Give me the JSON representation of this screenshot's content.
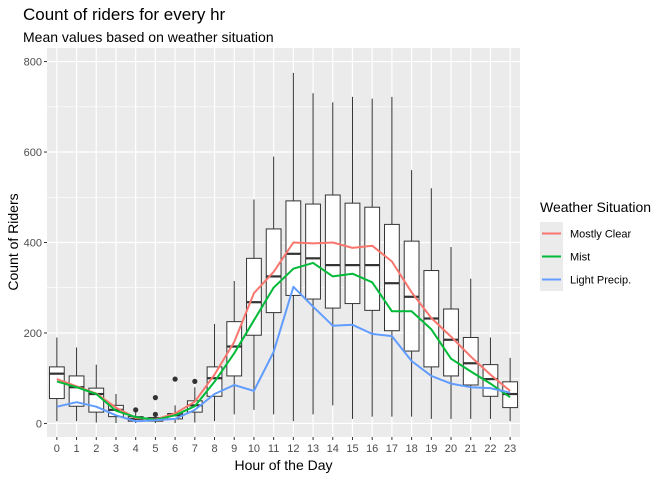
{
  "chart_data": {
    "type": "box",
    "title": "Count of riders for every hr",
    "subtitle": "Mean values based on weather situation",
    "xlabel": "Hour of the Day",
    "ylabel": "Count of Riders",
    "ylim": [
      -30,
      830
    ],
    "y_ticks": [
      0,
      200,
      400,
      600,
      800
    ],
    "categories": [
      "0",
      "1",
      "2",
      "3",
      "4",
      "5",
      "6",
      "7",
      "8",
      "9",
      "10",
      "11",
      "12",
      "13",
      "14",
      "15",
      "16",
      "17",
      "18",
      "19",
      "20",
      "21",
      "22",
      "23"
    ],
    "boxes": [
      {
        "q1": 55,
        "median": 110,
        "q3": 125,
        "lo": 5,
        "hi": 190,
        "outliers": []
      },
      {
        "q1": 38,
        "median": 80,
        "q3": 105,
        "lo": 5,
        "hi": 168,
        "outliers": []
      },
      {
        "q1": 25,
        "median": 65,
        "q3": 78,
        "lo": 2,
        "hi": 130,
        "outliers": []
      },
      {
        "q1": 15,
        "median": 30,
        "q3": 40,
        "lo": 1,
        "hi": 65,
        "outliers": []
      },
      {
        "q1": 5,
        "median": 10,
        "q3": 15,
        "lo": 1,
        "hi": 25,
        "outliers": [
          30
        ]
      },
      {
        "q1": 5,
        "median": 10,
        "q3": 13,
        "lo": 1,
        "hi": 18,
        "outliers": [
          20,
          57
        ]
      },
      {
        "q1": 10,
        "median": 18,
        "q3": 22,
        "lo": 1,
        "hi": 40,
        "outliers": [
          98
        ]
      },
      {
        "q1": 25,
        "median": 40,
        "q3": 50,
        "lo": 2,
        "hi": 80,
        "outliers": [
          93
        ]
      },
      {
        "q1": 60,
        "median": 100,
        "q3": 125,
        "lo": 5,
        "hi": 220,
        "outliers": []
      },
      {
        "q1": 105,
        "median": 170,
        "q3": 225,
        "lo": 20,
        "hi": 315,
        "outliers": []
      },
      {
        "q1": 195,
        "median": 268,
        "q3": 365,
        "lo": 30,
        "hi": 495,
        "outliers": []
      },
      {
        "q1": 245,
        "median": 325,
        "q3": 430,
        "lo": 20,
        "hi": 590,
        "outliers": []
      },
      {
        "q1": 283,
        "median": 375,
        "q3": 492,
        "lo": 5,
        "hi": 775,
        "outliers": []
      },
      {
        "q1": 275,
        "median": 365,
        "q3": 485,
        "lo": 20,
        "hi": 730,
        "outliers": []
      },
      {
        "q1": 255,
        "median": 350,
        "q3": 505,
        "lo": 40,
        "hi": 710,
        "outliers": []
      },
      {
        "q1": 265,
        "median": 350,
        "q3": 487,
        "lo": 10,
        "hi": 722,
        "outliers": []
      },
      {
        "q1": 250,
        "median": 350,
        "q3": 478,
        "lo": 15,
        "hi": 718,
        "outliers": []
      },
      {
        "q1": 205,
        "median": 310,
        "q3": 440,
        "lo": 15,
        "hi": 722,
        "outliers": []
      },
      {
        "q1": 160,
        "median": 280,
        "q3": 403,
        "lo": 15,
        "hi": 560,
        "outliers": []
      },
      {
        "q1": 125,
        "median": 232,
        "q3": 338,
        "lo": 10,
        "hi": 520,
        "outliers": []
      },
      {
        "q1": 105,
        "median": 185,
        "q3": 253,
        "lo": 10,
        "hi": 390,
        "outliers": []
      },
      {
        "q1": 85,
        "median": 133,
        "q3": 190,
        "lo": 10,
        "hi": 320,
        "outliers": []
      },
      {
        "q1": 60,
        "median": 98,
        "q3": 130,
        "lo": 10,
        "hi": 190,
        "outliers": []
      },
      {
        "q1": 35,
        "median": 65,
        "q3": 92,
        "lo": 5,
        "hi": 145,
        "outliers": []
      }
    ],
    "series": [
      {
        "name": "Mostly Clear",
        "color": "#F8766D",
        "values": [
          98,
          82,
          66,
          35,
          12,
          9,
          22,
          48,
          108,
          180,
          288,
          335,
          400,
          398,
          400,
          388,
          393,
          358,
          290,
          233,
          192,
          148,
          108,
          72
        ]
      },
      {
        "name": "Mist",
        "color": "#00BA38",
        "values": [
          93,
          80,
          65,
          28,
          14,
          8,
          18,
          38,
          92,
          155,
          228,
          300,
          342,
          355,
          325,
          331,
          312,
          248,
          248,
          208,
          143,
          115,
          88,
          58
        ]
      },
      {
        "name": "Light Precip.",
        "color": "#619CFF",
        "values": [
          37,
          47,
          37,
          18,
          5,
          7,
          10,
          30,
          65,
          85,
          72,
          158,
          302,
          258,
          216,
          218,
          198,
          193,
          138,
          105,
          88,
          80,
          78,
          68
        ]
      }
    ],
    "legend": {
      "title": "Weather Situation",
      "position": "right"
    },
    "grid": true
  }
}
